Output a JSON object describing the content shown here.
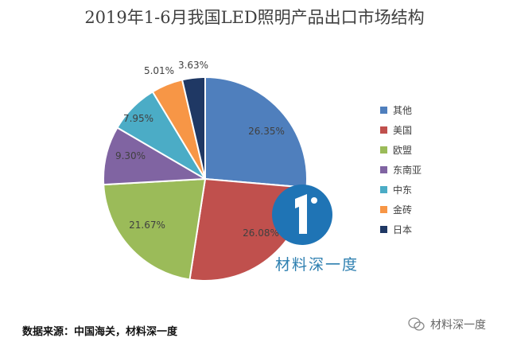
{
  "chart_data": {
    "type": "pie",
    "title": "2019年1-6月我国LED照明产品出口市场结构",
    "categories": [
      "其他",
      "美国",
      "欧盟",
      "东南亚",
      "中东",
      "金砖",
      "日本"
    ],
    "values": [
      26.35,
      26.08,
      21.67,
      9.3,
      7.95,
      5.01,
      3.63
    ],
    "labels": [
      "26.35%",
      "26.08%",
      "21.67%",
      "9.30%",
      "7.95%",
      "5.01%",
      "3.63%"
    ],
    "colors": [
      "#4f7fbd",
      "#c0504d",
      "#9bbb59",
      "#8064a2",
      "#4bacc6",
      "#f79646",
      "#1f3864"
    ],
    "legend_position": "right"
  },
  "source": "数据来源：中国海关，材料深一度",
  "logo_text": "材料深一度",
  "watermark": "材料深一度"
}
